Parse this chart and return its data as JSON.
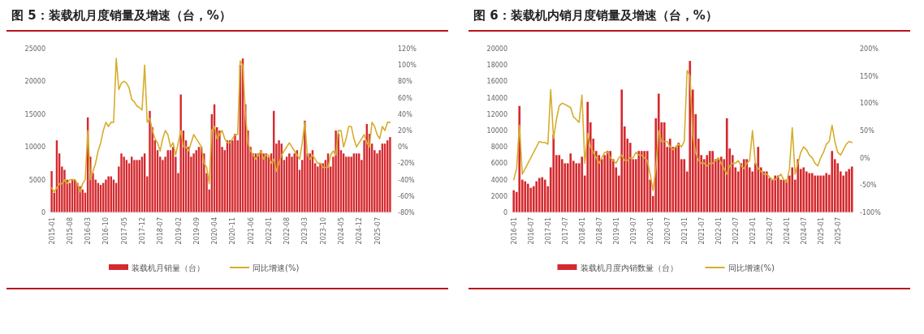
{
  "chart_data": [
    {
      "type": "bar",
      "title": "图 5：装载机月度销量及增速（台，%）",
      "legend": "bottom",
      "categories": [
        "2015-01",
        null,
        null,
        null,
        null,
        null,
        null,
        "2015-08",
        null,
        null,
        null,
        null,
        null,
        null,
        "2016-03",
        null,
        null,
        null,
        null,
        null,
        null,
        "2016-10",
        null,
        null,
        null,
        null,
        null,
        null,
        "2017-05",
        null,
        null,
        null,
        null,
        null,
        null,
        "2017-12",
        null,
        null,
        null,
        null,
        null,
        null,
        "2018-07",
        null,
        null,
        null,
        null,
        null,
        null,
        "2019-02",
        null,
        null,
        null,
        null,
        null,
        null,
        "2019-09",
        null,
        null,
        null,
        null,
        null,
        null,
        "2020-04",
        null,
        null,
        null,
        null,
        null,
        null,
        "2020-11",
        null,
        null,
        null,
        null,
        null,
        null,
        "2021-06",
        null,
        null,
        null,
        null,
        null,
        null,
        "2022-01",
        null,
        null,
        null,
        null,
        null,
        null,
        "2022-08",
        null,
        null,
        null,
        null,
        null,
        null,
        "2023-03",
        null,
        null,
        null,
        null,
        null,
        null,
        "2023-10",
        null,
        null,
        null,
        null,
        null,
        null,
        "2024-05",
        null,
        null,
        null,
        null,
        null,
        null,
        "2024-12",
        null,
        null,
        null,
        null,
        null,
        null,
        "2025-07",
        null,
        null,
        null,
        null,
        null
      ],
      "ylim": [
        0,
        25000
      ],
      "yticks": [
        0,
        5000,
        10000,
        15000,
        20000,
        25000
      ],
      "y2lim": [
        -80,
        120
      ],
      "y2ticks": [
        {
          "value": -80,
          "label": "-80%"
        },
        {
          "value": -60,
          "label": "-60%"
        },
        {
          "value": -40,
          "label": "-40%"
        },
        {
          "value": -20,
          "label": "-20%"
        },
        {
          "value": 0,
          "label": "0%"
        },
        {
          "value": 20,
          "label": "20%"
        },
        {
          "value": 40,
          "label": "40%"
        },
        {
          "value": 60,
          "label": "60%"
        },
        {
          "value": 80,
          "label": "80%"
        },
        {
          "value": 100,
          "label": "100%"
        },
        {
          "value": 120,
          "label": "120%"
        }
      ],
      "series": [
        {
          "name": "装载机月销量（台）",
          "color": "#d42a2f",
          "values": [
            6300,
            3000,
            11000,
            9000,
            7000,
            6500,
            5000,
            4500,
            5000,
            5000,
            4500,
            4000,
            3500,
            3000,
            14500,
            8500,
            6000,
            5000,
            4500,
            4200,
            4500,
            5000,
            5500,
            5500,
            5000,
            4500,
            7000,
            9000,
            8500,
            8000,
            7500,
            8500,
            8000,
            8000,
            8000,
            8500,
            9000,
            5500,
            15500,
            13000,
            11000,
            9500,
            8500,
            8000,
            8500,
            9500,
            9500,
            10000,
            8500,
            6000,
            18000,
            12500,
            11000,
            10000,
            8500,
            9000,
            9500,
            10000,
            10000,
            9000,
            6000,
            3500,
            15000,
            16500,
            13000,
            12500,
            10000,
            9500,
            11000,
            11000,
            11000,
            12000,
            11000,
            22500,
            23500,
            16500,
            12500,
            10000,
            9000,
            9000,
            9000,
            9500,
            9000,
            9000,
            8500,
            9000,
            15500,
            10500,
            11000,
            10500,
            8000,
            8500,
            9000,
            8500,
            9000,
            9500,
            6500,
            8000,
            14000,
            9000,
            9000,
            9500,
            7500,
            7000,
            7500,
            7500,
            8000,
            9000,
            7000,
            8500,
            12500,
            12000,
            9500,
            9000,
            8500,
            8500,
            8500,
            9000,
            9000,
            9000,
            8000,
            11000,
            13500,
            12000,
            10500,
            9500,
            9000,
            9500,
            10500,
            10500,
            11000,
            11500
          ]
        },
        {
          "name": "同比增速(%)",
          "type": "line",
          "axis": "y2",
          "color": "#d6ad2c",
          "values": [
            -50,
            -55,
            -50,
            -45,
            -45,
            -40,
            -45,
            -40,
            -40,
            -40,
            -45,
            -55,
            -45,
            -40,
            20,
            -40,
            -30,
            -20,
            -5,
            5,
            20,
            30,
            25,
            30,
            30,
            108,
            70,
            78,
            80,
            78,
            72,
            58,
            55,
            50,
            48,
            45,
            100,
            30,
            35,
            20,
            10,
            5,
            -5,
            10,
            20,
            15,
            0,
            5,
            -10,
            5,
            20,
            0,
            0,
            -5,
            5,
            15,
            10,
            5,
            0,
            -20,
            -25,
            -45,
            20,
            25,
            10,
            15,
            20,
            10,
            5,
            5,
            10,
            15,
            15,
            105,
            100,
            40,
            5,
            -5,
            -10,
            -15,
            -10,
            -5,
            -15,
            -10,
            -10,
            -20,
            -15,
            -30,
            -20,
            -10,
            -5,
            0,
            5,
            0,
            -5,
            -10,
            -15,
            5,
            30,
            -10,
            -15,
            -10,
            -15,
            -20,
            -20,
            -25,
            -25,
            -25,
            -10,
            -5,
            -10,
            20,
            20,
            0,
            10,
            25,
            25,
            10,
            0,
            5,
            10,
            15,
            5,
            0,
            30,
            25,
            15,
            10,
            25,
            20,
            30,
            30
          ]
        }
      ]
    },
    {
      "type": "bar",
      "title": "图 6：装载机内销月度销量及增速（台，%）",
      "legend": "bottom",
      "categories": [
        "2016-01",
        null,
        null,
        null,
        null,
        null,
        "2016-07",
        null,
        null,
        null,
        null,
        null,
        "2017-01",
        null,
        null,
        null,
        null,
        null,
        "2017-07",
        null,
        null,
        null,
        null,
        null,
        "2018-01",
        null,
        null,
        null,
        null,
        null,
        "2018-07",
        null,
        null,
        null,
        null,
        null,
        "2019-01",
        null,
        null,
        null,
        null,
        null,
        "2019-07",
        null,
        null,
        null,
        null,
        null,
        "2020-01",
        null,
        null,
        null,
        null,
        null,
        "2020-07",
        null,
        null,
        null,
        null,
        null,
        "2021-01",
        null,
        null,
        null,
        null,
        null,
        "2021-07",
        null,
        null,
        null,
        null,
        null,
        "2022-01",
        null,
        null,
        null,
        null,
        null,
        "2022-07",
        null,
        null,
        null,
        null,
        null,
        "2023-01",
        null,
        null,
        null,
        null,
        null,
        "2023-07",
        null,
        null,
        null,
        null,
        null,
        "2024-01",
        null,
        null,
        null,
        null,
        null,
        "2024-07",
        null,
        null,
        null,
        null,
        null,
        "2025-01",
        null,
        null,
        null,
        null,
        null,
        "2025-07",
        null,
        null,
        null,
        null,
        null
      ],
      "ylim": [
        0,
        20000
      ],
      "yticks": [
        0,
        2000,
        4000,
        6000,
        8000,
        10000,
        12000,
        14000,
        16000,
        18000,
        20000
      ],
      "y2lim": [
        -100,
        200
      ],
      "y2ticks": [
        {
          "value": -100,
          "label": "-100%"
        },
        {
          "value": -50,
          "label": "-50%"
        },
        {
          "value": 0,
          "label": "0%"
        },
        {
          "value": 50,
          "label": "50%"
        },
        {
          "value": 100,
          "label": "100%"
        },
        {
          "value": 150,
          "label": "150%"
        },
        {
          "value": 200,
          "label": "200%"
        }
      ],
      "series": [
        {
          "name": "装载机月度内销数量（台）",
          "color": "#d42a2f",
          "values": [
            2700,
            2500,
            13000,
            4000,
            3800,
            3500,
            3000,
            3200,
            3800,
            4200,
            4300,
            4000,
            3200,
            5500,
            9500,
            7000,
            7000,
            6500,
            6000,
            6000,
            7200,
            6300,
            6000,
            6000,
            6800,
            4500,
            13500,
            11000,
            9000,
            7500,
            7000,
            6500,
            7000,
            7500,
            7500,
            6500,
            5500,
            4500,
            15000,
            10500,
            9000,
            8500,
            6500,
            6500,
            7500,
            7500,
            7500,
            7500,
            4000,
            2000,
            11500,
            14500,
            11000,
            11000,
            8000,
            9000,
            8000,
            8000,
            8500,
            6500,
            6500,
            5000,
            18500,
            15000,
            12000,
            9000,
            7000,
            6500,
            7000,
            7500,
            7500,
            6500,
            6500,
            6800,
            6500,
            11500,
            7800,
            7000,
            5500,
            5000,
            6000,
            6500,
            6500,
            5500,
            5000,
            6000,
            8000,
            5500,
            5000,
            5000,
            4200,
            4000,
            4500,
            4500,
            4000,
            4000,
            4000,
            4500,
            5500,
            4000,
            6500,
            5300,
            5500,
            5000,
            4800,
            4800,
            4500,
            4500,
            4500,
            4500,
            4800,
            4600,
            7500,
            6500,
            6000,
            5000,
            4500,
            5000,
            5300,
            5600
          ]
        },
        {
          "name": "同比增速(%)",
          "type": "line",
          "axis": "y2",
          "color": "#d6ad2c",
          "values": [
            -40,
            -20,
            60,
            -30,
            -20,
            -10,
            0,
            10,
            20,
            30,
            28,
            28,
            25,
            125,
            35,
            70,
            95,
            100,
            98,
            95,
            92,
            75,
            70,
            65,
            115,
            -10,
            45,
            20,
            10,
            0,
            -10,
            0,
            10,
            10,
            0,
            -5,
            -10,
            0,
            5,
            -5,
            -5,
            0,
            0,
            10,
            5,
            5,
            0,
            -5,
            -30,
            -60,
            -20,
            50,
            30,
            30,
            30,
            20,
            15,
            20,
            25,
            20,
            30,
            160,
            150,
            40,
            10,
            -5,
            -10,
            -10,
            -15,
            -10,
            -10,
            -5,
            0,
            -10,
            -20,
            -30,
            -15,
            -10,
            -10,
            -5,
            -15,
            -20,
            -10,
            -5,
            50,
            -10,
            -20,
            -25,
            -30,
            -30,
            -35,
            -40,
            -40,
            -35,
            -30,
            -40,
            -45,
            -20,
            55,
            -30,
            -10,
            10,
            20,
            15,
            5,
            0,
            -10,
            -15,
            0,
            10,
            25,
            30,
            60,
            30,
            10,
            5,
            15,
            25,
            30,
            28
          ]
        }
      ]
    }
  ]
}
